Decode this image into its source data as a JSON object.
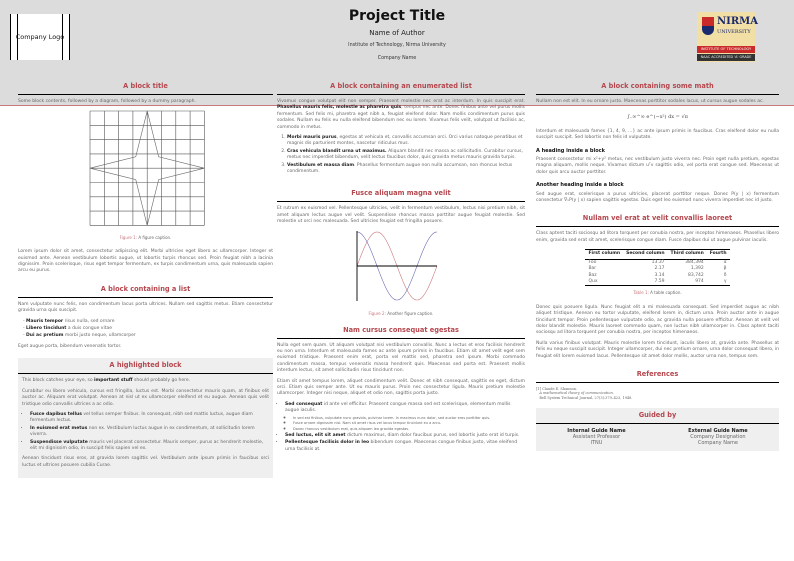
{
  "header": {
    "logo_text": "Company Logo",
    "title": "Project Title",
    "author": "Name of Author",
    "institute": "Institute of Technology, Nirma University",
    "company": "Company Name",
    "nirma_logo": {
      "name": "NIRMA",
      "sub": "UNIVERSITY",
      "band1": "INSTITUTE OF TECHNOLOGY",
      "band2": "NAAC ACCREDITED 'A' GRADE"
    }
  },
  "left": {
    "b1": {
      "title": "A block title",
      "intro": "Some block contents, followed by a diagram, followed by a dummy paragraph.",
      "fig_label": "Figure 1:",
      "fig_caption": "A figure caption.",
      "para": "Lorem ipsum dolor sit amet, consectetur adipiscing elit. Morbi ultricies eget libero ac ullamcorper. Integer et euismod ante. Aenean vestibulum lobortis augue, ut lobortis turpis rhoncus sed. Proin feugiat nibh a lacinia dignissim. Proin scelerisque, risus eget tempor fermentum, ex turpis condimentum urna, quis malesuada sapien arcu eu purus."
    },
    "b2": {
      "title": "A block containing a list",
      "intro": "Nam vulputate nunc felis, non condimentum lacus porta ultrices. Nullam sed sagittis metus. Etiam consectetur gravida urna quis suscipit.",
      "items": [
        {
          "b": "Mauris tempor",
          "t": " risus nulla, sed ornare"
        },
        {
          "b": "Libero tincidunt",
          "t": " a duis congue vitae"
        },
        {
          "b": "Dui ac pretium",
          "t": " morbi justo neque, ullamcorper"
        }
      ],
      "outro": "Eget augue porta, bibendum venenatis tortor."
    },
    "b3": {
      "title": "A highlighted block",
      "p1a": "This block catches your eye, so ",
      "p1b": "important stuff",
      "p1c": " should probably go here.",
      "p2": "Curabitur eu libero vehicula, cursus est fringilla, luctus est. Morbi consectetur mauris quam, at finibus elit auctor ac. Aliquam erat volutpat. Aenean at nisl ut ex ullamcorper eleifend et eu augue. Aenean quis velit tristique odio convallis ultrices a ac odio.",
      "items": [
        {
          "b": "Fusce dapibus tellus",
          "t": " vel tellus semper finibus. In consequat, nibh sed mattis luctus, augue diam fermentum lectus."
        },
        {
          "b": "In euismod erat metus",
          "t": " non ex. Vestibulum luctus augue in ex condimentum, at sollicitudin lorem viverra."
        },
        {
          "b": "Suspendisse vulputate",
          "t": " mauris vel placerat consectetur. Mauris semper, purus ac hendrerit molestie, elit mi dignissim odio, in suscipit felis sapien vel ex."
        }
      ],
      "p3": "Aenean tincidunt risus eros, at gravida lorem sagittis vel. Vestibulum ante ipsum primis in faucibus orci luctus et ultrices posuere cubilia Curae."
    }
  },
  "middle": {
    "b1": {
      "title": "A block containing an enumerated list",
      "p_a": "Vivamus congue volutpat elit non semper. Praesent molestie nec erat ac interdum. In quis suscipit erat. ",
      "p_b": "Phasellus mauris felis, molestie ac pharetra quis",
      "p_c": ", tempus nec ante. Donec finibus ante vel purus mollis fermentum. Sed felis mi, pharetra eget nibh a, feugiat eleifend dolor. Nam mollis condimentum purus quis sodales. Nullam eu felis eu nulla eleifend bibendum nec eu lorem. Vivamus felis velit, volutpat ut facilisis ac, commodo in metus.",
      "items": [
        {
          "b": "Morbi mauris purus",
          "t": ", egestas at vehicula et, convallis accumsan orci. Orci varius natoque penatibus et magnis dis parturient montes, nascetur ridiculus mus."
        },
        {
          "b": "Cras vehicula blandit urna ut maximus.",
          "t": " Aliquam blandit nec massa ac sollicitudin. Curabitur cursus, metus nec imperdiet bibendum, velit lectus faucibus dolor, quis gravida metus mauris gravida turpis."
        },
        {
          "b": "Vestibulum et massa diam",
          "t": ". Phasellus fermentum augue non nulla accumsan, non rhoncus lectus condimentum."
        }
      ]
    },
    "b2": {
      "title": "Fusce aliquam magna velit",
      "para": "Et rutrum ex euismod vel. Pellentesque ultricies, velit in fermentum vestibulum, lectus nisi pretium nibh, sit amet aliquam lectus augue vel velit. Suspendisse rhoncus massa porttitor augue feugiat molestie. Sed molestie ut orci nec malesuada. Sed ultricies feugiat est fringilla posuere.",
      "fig_label": "Figure 2:",
      "fig_caption": "Another figure caption.",
      "colors": {
        "sin": "#c9777d",
        "cos": "#6b6bb5"
      }
    },
    "b3": {
      "title": "Nam cursus consequat egestas",
      "p1": "Nulla eget sem quam. Ut aliquam volutpat nisi vestibulum convallis. Nunc a lectus et eros facilisis hendrerit eu non urna. Interdum et malesuada fames ac ante ipsum primis in faucibus. Etiam sit amet velit eget sem euismod tristique. Praesent enim erat, porta vel mattis sed, pharetra sed ipsum. Morbi commodo condimentum massa, tempus venenatis massa hendrerit quis. Maecenas sed porta est. Praesent mollis interdum lectus, sit amet sollicitudin risus tincidunt non.",
      "p2": "Etiam sit amet tempus lorem, aliquet condimentum velit. Donec et nibh consequat, sagittis ex eget, dictum orci. Etiam quis semper ante. Ut eu mauris purus. Proin nec consectetur ligula. Mauris pretium molestie ullamcorper. Integer nisi neque, aliquet et odio non, sagittis porta justo.",
      "items": [
        {
          "b": "Sed consequat",
          "t": " id ante vel efficitur. Praesent congue massa sed est scelerisque, elementum mollis augue iaculis.",
          "sub": [
            "In sed est finibus, vulputate nunc gravida, pulvinar lorem. In maximus nunc dolor, sed auctor eros porttitor quis.",
            "Fusce ornare dignissim nisl. Nam sit amet risus vel lacus tempor tincidunt eu a arcu.",
            "Donec rhoncus vestibulum erat, quis aliquam leo gravida egestas."
          ]
        },
        {
          "b": "Sed luctus, elit sit amet",
          "t": " dictum maximus, diam dolor faucibus purus, sed lobortis justo erat id turpis."
        },
        {
          "b": "Pellentesque facilisis dolor in leo",
          "t": " bibendum congue. Maecenas congue finibus justo, vitae eleifend urna facilisis at."
        }
      ]
    }
  },
  "right": {
    "b1": {
      "title": "A block containing some math",
      "p1": "Nullam non est elit. In eu ornare justo. Maecenas porttitor sodales lacus, ut cursus augue sodales ac.",
      "equation": "∫₋∞^∞ e^(−x²) dx = √π",
      "p2": "Interdum et malesuada fames {1, 4, 9, …} ac ante ipsum primis in faucibus. Cras eleifend dolor eu nulla suscipit suscipit. Sed lobortis non felis id vulputate.",
      "h1": "A heading inside a block",
      "p3": "Praesent consectetur mi x²+y² metus, nec vestibulum justo viverra nec. Proin eget nulla pretium, egestas magna aliquam, mollis neque. Vivamus dictum uᵀv sagittis odio, vel porta erat congue sed. Maecenas ut dolor quis arcu auctor porttitor.",
      "h2": "Another heading inside a block",
      "p4": "Sed augue erat, scelerisque a purus ultricies, placerat porttitor neque. Donec P(y | x) fermentum consectetur ∇ₓP(y | x) sapien sagittis egestas. Duis eget leo euismod nunc viverra imperdiet nec id justo."
    },
    "b2": {
      "title": "Nullam vel erat at velit convallis laoreet",
      "p1": "Class aptent taciti sociosqu ad litora torquent per conubia nostra, per inceptos himenaeos. Phasellus libero enim, gravida sed erat sit amet, scelerisque congue diam. Fusce dapibus dui ut augue pulvinar iaculis.",
      "table": {
        "headers": [
          "First column",
          "Second column",
          "Third column",
          "Fourth"
        ],
        "rows": [
          [
            "Foo",
            "13.37",
            "384,394",
            "α"
          ],
          [
            "Bar",
            "2.17",
            "1,392",
            "β"
          ],
          [
            "Baz",
            "3.14",
            "83,742",
            "δ"
          ],
          [
            "Qux",
            "7.59",
            "974",
            "γ"
          ]
        ]
      },
      "tab_label": "Table 1:",
      "tab_caption": "A table caption.",
      "p2": "Donec quis posuere ligula. Nunc feugiat elit a mi malesuada consequat. Sed imperdiet augue ac nibh aliquet tristique. Aenean eu tortor vulputate, eleifend lorem in, dictum urna. Proin auctor ante in augue tincidunt tempor. Proin pellentesque vulputate odio, ac gravida nulla posuere efficitur. Aenean at velit vel dolor blandit molestie. Mauris laoreet commodo quam, non luctus nibh ullamcorper in. Class aptent taciti sociosqu ad litora torquent per conubia nostra, per inceptos himenaeos.",
      "p3": "Nulla varius finibus volutpat. Mauris molestie lorem tincidunt, iaculis libero at, gravida ante. Phasellus at felis eu neque suscipit suscipit. Integer ullamcorper, dui nec pretium ornare, urna dolor consequat libero, in feugiat elit lorem euismod lacus. Pellentesque sit amet dolor mollis, auctor urna non, tempus sem."
    },
    "refs": {
      "title": "References",
      "num": "[1]",
      "author": "Claude E. Shannon.",
      "work": "A mathematical theory of communication.",
      "journal": "Bell System Technical Journal, 27(3):379–423, 1948."
    },
    "guides": {
      "title": "Guided by",
      "internal": {
        "name": "Internal Guide Name",
        "role": "Assistant Professor",
        "org": "ITNU"
      },
      "external": {
        "name": "External Guide Name",
        "role": "Company Designation",
        "org": "Company Name"
      }
    }
  },
  "colors": {
    "accent": "#b5474e",
    "header_bg": "#dcdcdc",
    "highlight_bg": "#efefef"
  }
}
